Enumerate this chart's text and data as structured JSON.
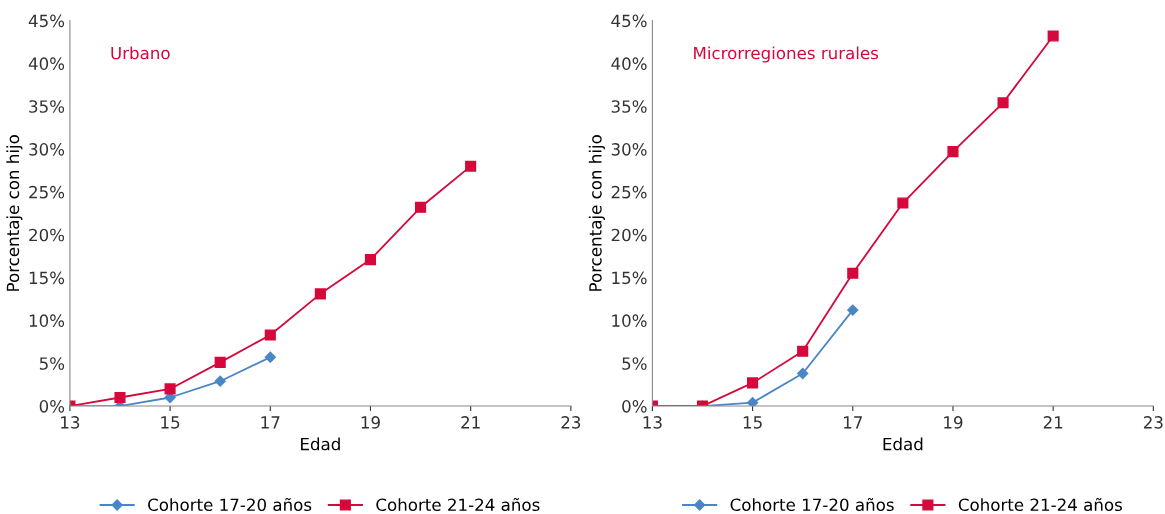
{
  "chart_data": [
    {
      "type": "line",
      "title": "Urbano",
      "xlabel": "Edad",
      "ylabel": "Porcentaje con hijo",
      "xlim": [
        13,
        23
      ],
      "xticks": [
        13,
        15,
        17,
        19,
        21,
        23
      ],
      "ylim": [
        0,
        45
      ],
      "yticks": [
        {
          "value": 0,
          "label": "0%"
        },
        {
          "value": 5,
          "label": "5%"
        },
        {
          "value": 10,
          "label": "10%"
        },
        {
          "value": 15,
          "label": "15%"
        },
        {
          "value": 20,
          "label": "20%"
        },
        {
          "value": 25,
          "label": "25%"
        },
        {
          "value": 30,
          "label": "30%"
        },
        {
          "value": 35,
          "label": "35%"
        },
        {
          "value": 40,
          "label": "40%"
        },
        {
          "value": 45,
          "label": "45%"
        }
      ],
      "grid": false,
      "legend": "bottom",
      "line_style": "solid",
      "series": [
        {
          "name": "Cohorte 17-20 años",
          "color": "#4a86c6",
          "marker": "diamond",
          "x": [
            13,
            14,
            15,
            16,
            17
          ],
          "values": [
            0,
            0,
            1.0,
            2.9,
            5.7
          ]
        },
        {
          "name": "Cohorte 21-24 años",
          "color": "#d6083b",
          "marker": "square",
          "x": [
            13,
            14,
            15,
            16,
            17,
            18,
            19,
            20,
            21
          ],
          "values": [
            0,
            1.0,
            2.0,
            5.1,
            8.3,
            13.1,
            17.1,
            23.2,
            28.0
          ]
        }
      ]
    },
    {
      "type": "line",
      "title": "Microrregiones rurales",
      "xlabel": "Edad",
      "ylabel": "Porcentaje con hijo",
      "xlim": [
        13,
        23
      ],
      "xticks": [
        13,
        15,
        17,
        19,
        21,
        23
      ],
      "ylim": [
        0,
        45
      ],
      "yticks": [
        {
          "value": 0,
          "label": "0%"
        },
        {
          "value": 5,
          "label": "5%"
        },
        {
          "value": 10,
          "label": "10%"
        },
        {
          "value": 15,
          "label": "15%"
        },
        {
          "value": 20,
          "label": "20%"
        },
        {
          "value": 25,
          "label": "25%"
        },
        {
          "value": 30,
          "label": "30%"
        },
        {
          "value": 35,
          "label": "35%"
        },
        {
          "value": 40,
          "label": "40%"
        },
        {
          "value": 45,
          "label": "45%"
        }
      ],
      "grid": false,
      "legend": "bottom",
      "line_style": "solid",
      "series": [
        {
          "name": "Cohorte 17-20 años",
          "color": "#4a86c6",
          "marker": "diamond",
          "x": [
            13,
            14,
            15,
            16,
            17
          ],
          "values": [
            0,
            0,
            0.4,
            3.8,
            11.2
          ]
        },
        {
          "name": "Cohorte 21-24 años",
          "color": "#d6083b",
          "marker": "square",
          "x": [
            13,
            14,
            15,
            16,
            17,
            18,
            19,
            20,
            21
          ],
          "values": [
            0,
            0,
            2.7,
            6.4,
            15.5,
            23.7,
            29.7,
            35.4,
            43.2
          ]
        }
      ]
    }
  ]
}
